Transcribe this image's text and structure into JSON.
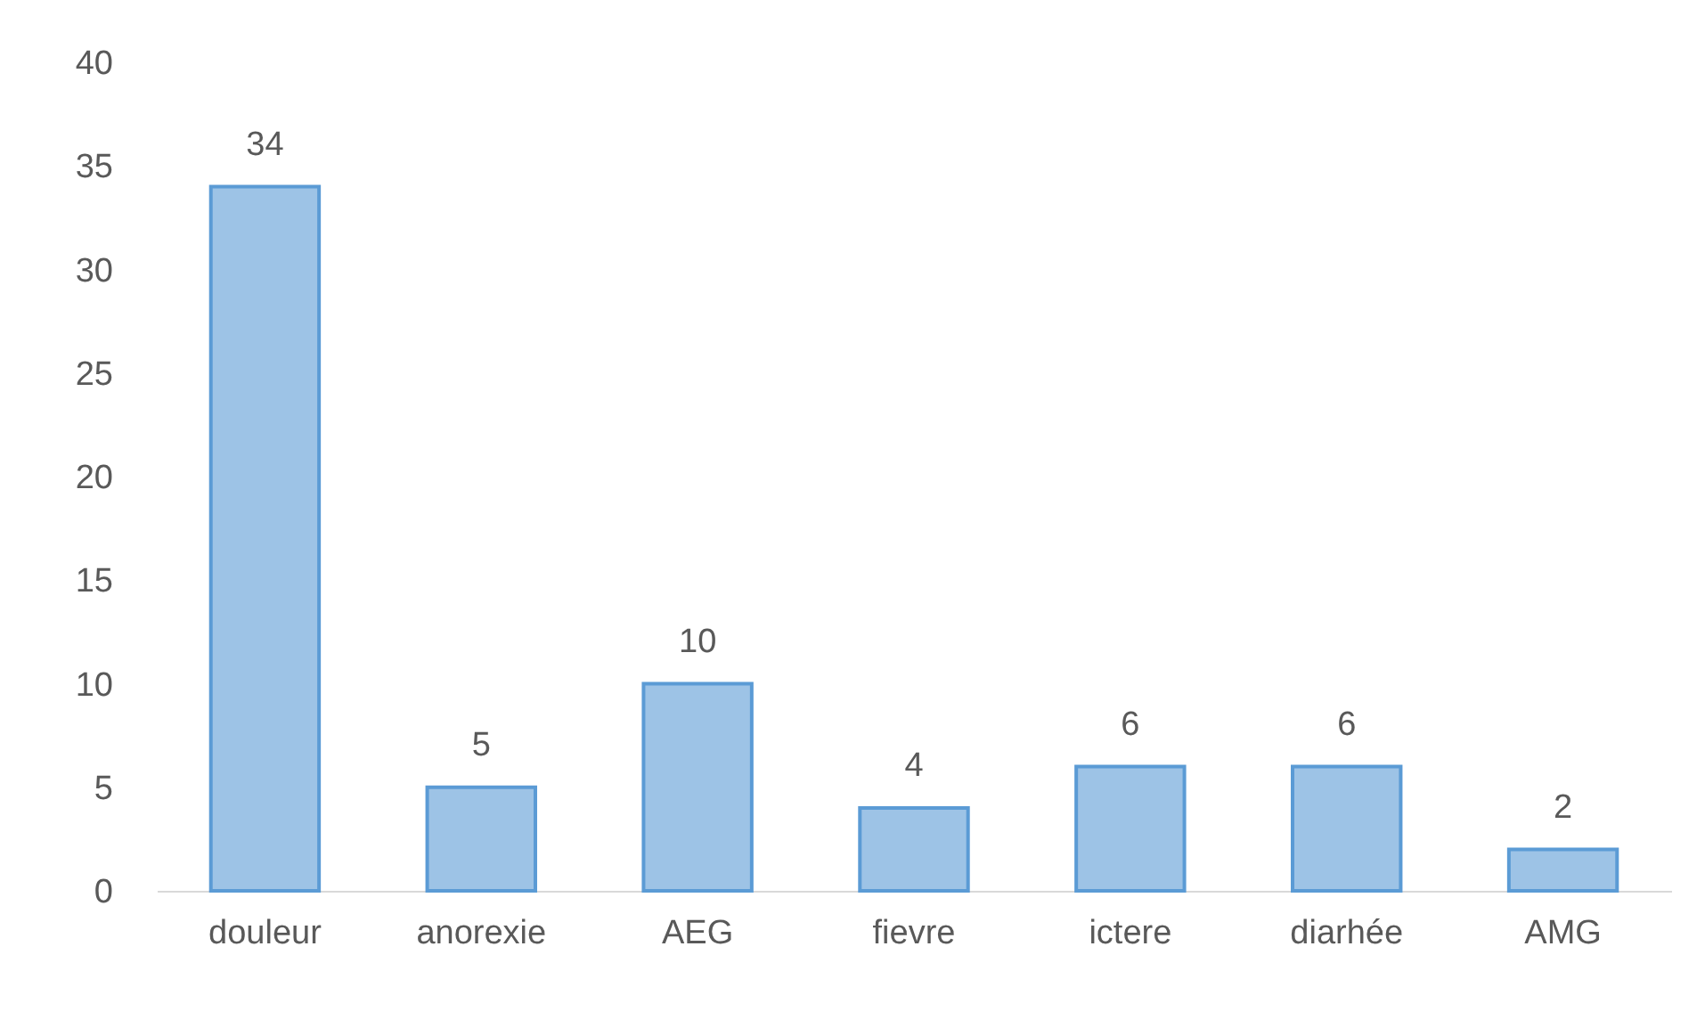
{
  "chart_data": {
    "type": "bar",
    "categories": [
      "douleur",
      "anorexie",
      "AEG",
      "fievre",
      "ictere",
      "diarhée",
      "AMG"
    ],
    "values": [
      34,
      5,
      10,
      4,
      6,
      6,
      2
    ],
    "color": "#9dc3e6",
    "ylim": [
      0,
      40
    ],
    "yticks": [
      0,
      5,
      10,
      15,
      20,
      25,
      30,
      35,
      40
    ],
    "data_labels": true,
    "grid": false
  }
}
